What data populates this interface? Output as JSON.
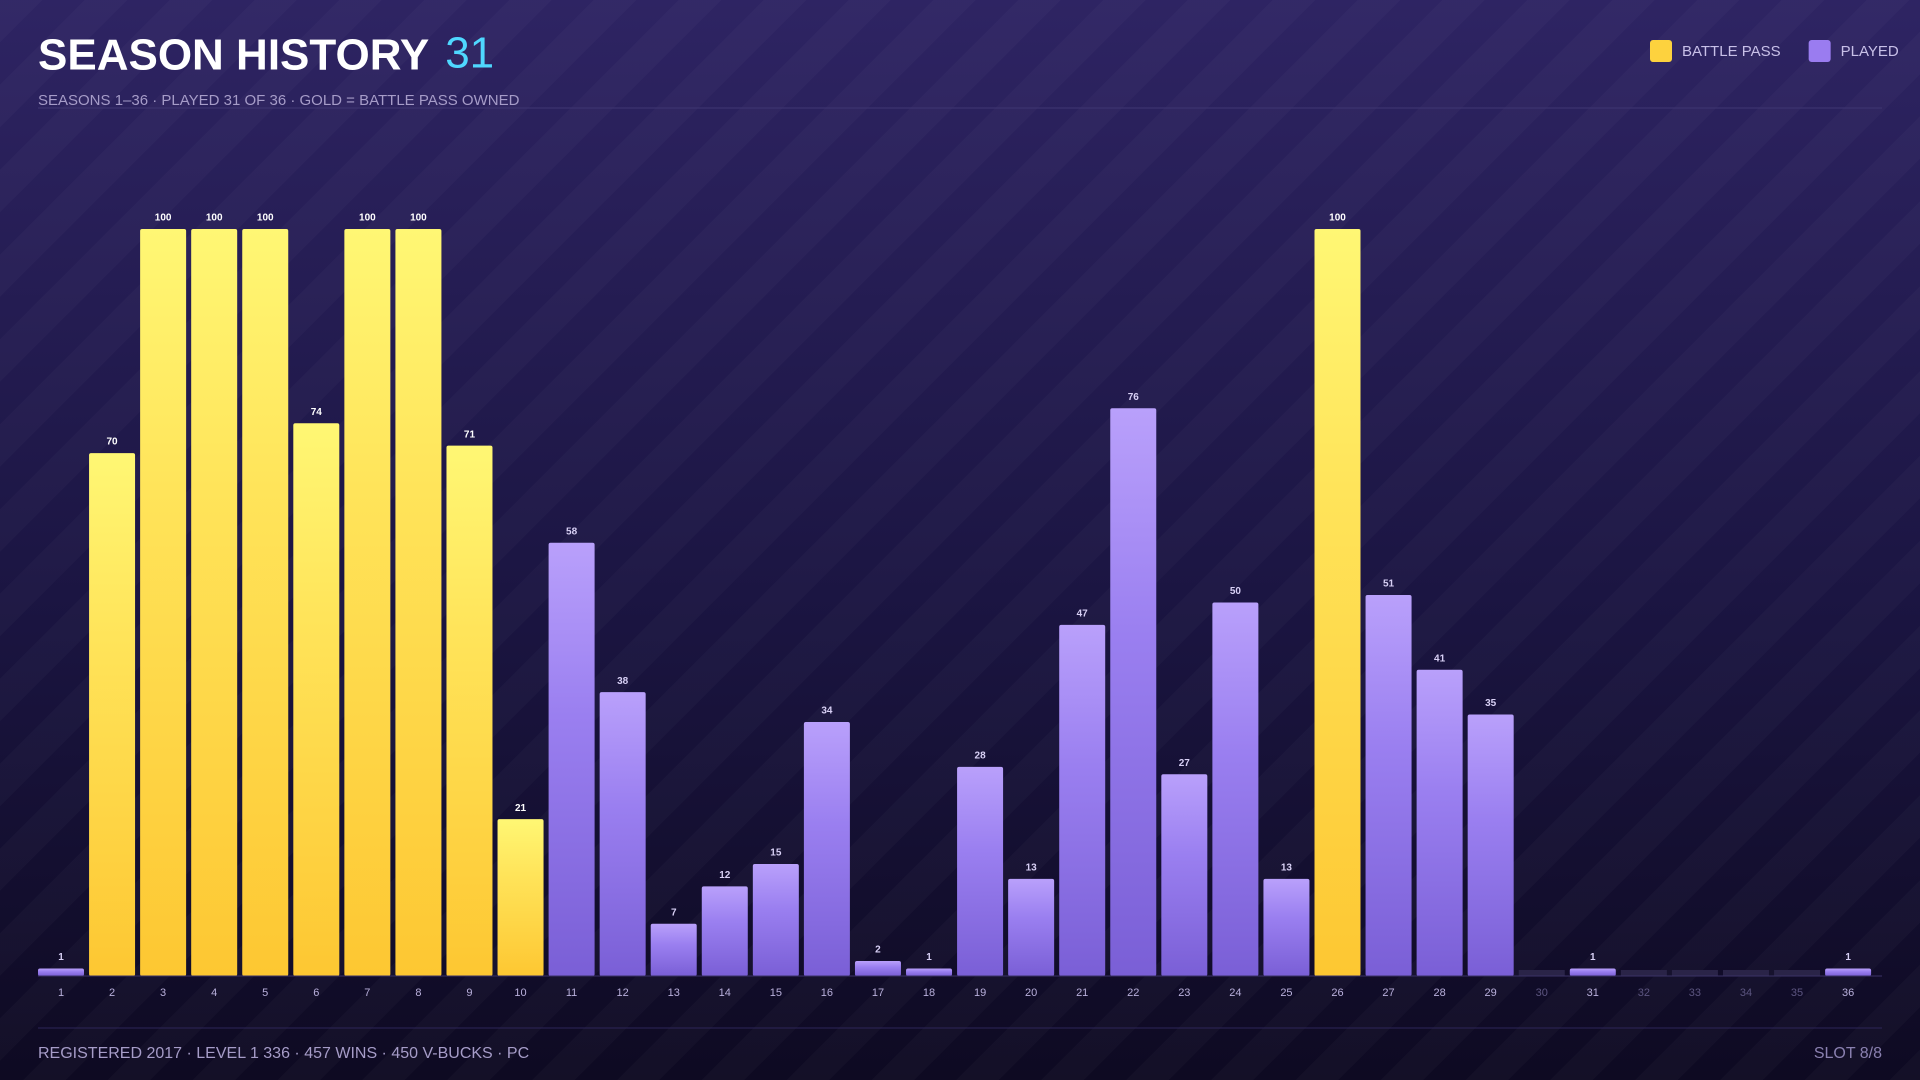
{
  "chart_data": {
    "type": "bar",
    "title": "SEASON HISTORY",
    "title_count": "31",
    "subtitle": "SEASONS 1–36 · PLAYED 31 OF 36 · GOLD = BATTLE PASS OWNED",
    "footer": "REGISTERED 2017 · LEVEL 1 336 · 457 WINS · 450 V-BUCKS · PC",
    "slot": "SLOT 8/8",
    "legend_position": "top-right",
    "categories": [
      "1",
      "2",
      "3",
      "4",
      "5",
      "6",
      "7",
      "8",
      "9",
      "10",
      "11",
      "12",
      "13",
      "14",
      "15",
      "16",
      "17",
      "18",
      "19",
      "20",
      "21",
      "22",
      "23",
      "24",
      "25",
      "26",
      "27",
      "28",
      "29",
      "30",
      "31",
      "32",
      "33",
      "34",
      "35",
      "36"
    ],
    "ylim": [
      0,
      100
    ],
    "series": [
      {
        "name": "BATTLE PASS",
        "color": "#fdd23e",
        "values": [
          null,
          70,
          100,
          100,
          100,
          74,
          100,
          100,
          71,
          21,
          null,
          null,
          null,
          null,
          null,
          null,
          null,
          null,
          null,
          null,
          null,
          null,
          null,
          null,
          null,
          100,
          null,
          null,
          null,
          null,
          null,
          null,
          null,
          null,
          null,
          null
        ]
      },
      {
        "name": "PLAYED",
        "color": "#9a7cf0",
        "values": [
          1,
          null,
          null,
          null,
          null,
          null,
          null,
          null,
          null,
          null,
          58,
          38,
          7,
          12,
          15,
          34,
          2,
          1,
          28,
          13,
          47,
          76,
          27,
          50,
          13,
          null,
          51,
          41,
          35,
          0,
          1,
          0,
          0,
          0,
          0,
          1
        ]
      }
    ]
  }
}
